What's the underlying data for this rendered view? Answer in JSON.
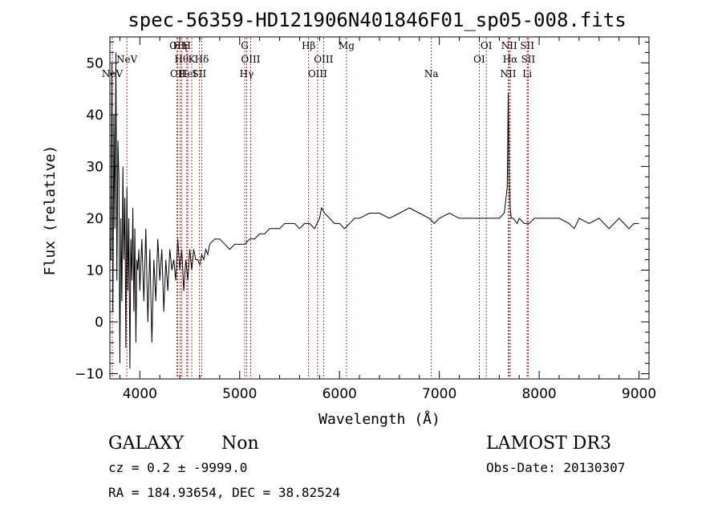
{
  "chart_data": {
    "type": "line",
    "title": "spec-56359-HD121906N401846F01_sp05-008.fits",
    "xlabel": "Wavelength (Å)",
    "ylabel": "Flux (relative)",
    "xlim": [
      3700,
      9100
    ],
    "ylim": [
      -11,
      55
    ],
    "xticks": [
      4000,
      5000,
      6000,
      7000,
      8000,
      9000
    ],
    "yticks": [
      -10,
      0,
      10,
      20,
      30,
      40,
      50
    ],
    "grid": false,
    "series": [
      {
        "x": [
          3710,
          3720,
          3730,
          3740,
          3750,
          3760,
          3770,
          3780,
          3790,
          3800,
          3810,
          3820,
          3830,
          3840,
          3850,
          3860,
          3870,
          3880,
          3890,
          3900,
          3910,
          3920,
          3930,
          3940,
          3950,
          3960,
          3970,
          3980,
          3990,
          4000,
          4020,
          4040,
          4060,
          4080,
          4100,
          4120,
          4140,
          4160,
          4180,
          4200,
          4220,
          4240,
          4260,
          4280,
          4300,
          4320,
          4340,
          4360,
          4380,
          4400,
          4420,
          4440,
          4460,
          4480,
          4500,
          4520,
          4540,
          4560,
          4580,
          4600,
          4620,
          4640,
          4660,
          4680,
          4700,
          4750,
          4800,
          4850,
          4900,
          4950,
          5000,
          5050,
          5100,
          5150,
          5200,
          5250,
          5300,
          5350,
          5400,
          5450,
          5500,
          5550,
          5600,
          5650,
          5700,
          5750,
          5800,
          5820,
          5850,
          5900,
          5950,
          6000,
          6050,
          6100,
          6150,
          6200,
          6300,
          6400,
          6500,
          6600,
          6700,
          6800,
          6900,
          6950,
          7000,
          7100,
          7200,
          7300,
          7400,
          7500,
          7550,
          7600,
          7650,
          7680,
          7690,
          7700,
          7710,
          7720,
          7740,
          7780,
          7800,
          7850,
          7900,
          7950,
          8000,
          8050,
          8100,
          8200,
          8300,
          8350,
          8400,
          8500,
          8600,
          8700,
          8800,
          8900,
          8950,
          9000
        ],
        "y": [
          12,
          50,
          2,
          40,
          18,
          52,
          8,
          35,
          28,
          -8,
          20,
          4,
          30,
          12,
          24,
          -5,
          26,
          6,
          20,
          -9,
          16,
          8,
          22,
          2,
          18,
          -4,
          12,
          10,
          14,
          6,
          16,
          4,
          18,
          0,
          14,
          -4,
          12,
          4,
          16,
          8,
          14,
          2,
          12,
          6,
          14,
          10,
          12,
          8,
          16,
          10,
          14,
          6,
          12,
          8,
          14,
          10,
          14,
          12,
          12,
          11,
          13,
          12,
          14,
          13,
          15,
          16,
          16,
          15,
          14,
          15,
          15,
          15,
          16,
          16,
          17,
          17,
          18,
          18,
          18,
          19,
          19,
          19,
          18,
          19,
          19,
          18,
          20,
          22,
          21,
          20,
          19,
          19,
          18,
          19,
          20,
          20,
          21,
          21,
          20,
          21,
          22,
          21,
          20,
          19,
          20,
          21,
          20,
          20,
          20,
          20,
          20,
          20,
          21,
          26,
          44,
          28,
          22,
          20,
          20,
          19,
          20,
          19,
          19,
          20,
          20,
          20,
          20,
          20,
          19,
          18,
          20,
          19,
          20,
          18,
          20,
          18,
          19,
          19
        ]
      }
    ],
    "lines": [
      {
        "name": "NeV",
        "x": 3426,
        "row": 3
      },
      {
        "name": "NeV",
        "x": 3870,
        "row": 2
      },
      {
        "name": "OII",
        "x": 4373,
        "row": 1
      },
      {
        "name": "Hη",
        "x": 4402,
        "row": 1
      },
      {
        "name": "H",
        "x": 4470,
        "row": 1
      },
      {
        "name": "OII",
        "x": 4380,
        "row": 3
      },
      {
        "name": "Hθ",
        "x": 4418,
        "row": 2
      },
      {
        "name": "K",
        "x": 4520,
        "row": 2
      },
      {
        "name": "Hδ",
        "x": 4620,
        "row": 2
      },
      {
        "name": "HeI",
        "x": 4480,
        "row": 3
      },
      {
        "name": "SII",
        "x": 4595,
        "row": 3
      },
      {
        "name": "G",
        "x": 5050,
        "row": 1
      },
      {
        "name": "OIII",
        "x": 5110,
        "row": 2
      },
      {
        "name": "Hγ",
        "x": 5070,
        "row": 3
      },
      {
        "name": "Hβ",
        "x": 5690,
        "row": 1
      },
      {
        "name": "OIII",
        "x": 5840,
        "row": 2
      },
      {
        "name": "OIII",
        "x": 5780,
        "row": 3
      },
      {
        "name": "Mg",
        "x": 6070,
        "row": 1
      },
      {
        "name": "Na",
        "x": 6920,
        "row": 3
      },
      {
        "name": "OI",
        "x": 7470,
        "row": 1
      },
      {
        "name": "OI",
        "x": 7400,
        "row": 2
      },
      {
        "name": "NII",
        "x": 7700,
        "row": 1
      },
      {
        "name": "SII",
        "x": 7880,
        "row": 1
      },
      {
        "name": "Hα",
        "x": 7710,
        "row": 2
      },
      {
        "name": "SII",
        "x": 7890,
        "row": 2
      },
      {
        "name": "NII",
        "x": 7690,
        "row": 3
      },
      {
        "name": "Li",
        "x": 7880,
        "row": 3
      }
    ]
  },
  "footer": {
    "type_label": "GALAXY",
    "subclass": "Non",
    "survey": "LAMOST DR3",
    "cz": "cz = 0.2 ± -9999.0",
    "obs_date": "Obs-Date: 20130307",
    "coords": "RA = 184.93654, DEC =  38.82524"
  }
}
